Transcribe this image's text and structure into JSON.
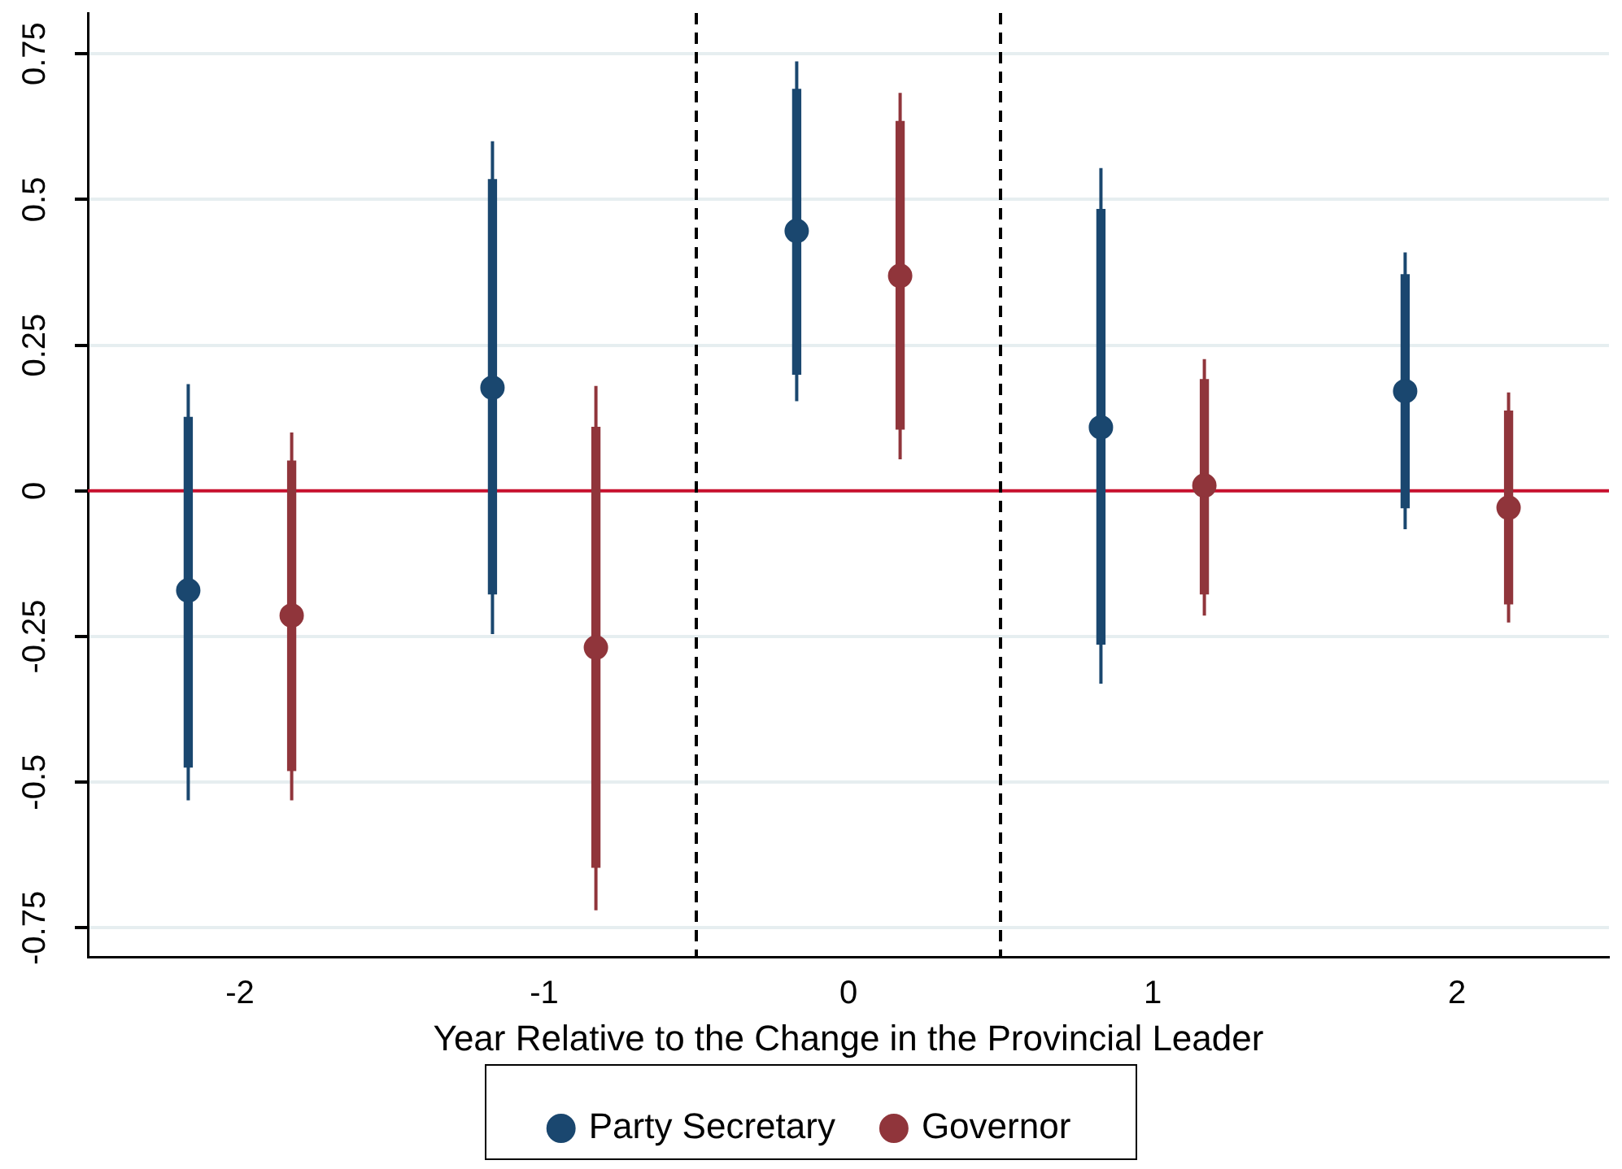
{
  "chart_data": {
    "type": "scatter",
    "xlabel": "Year Relative to the Change in the Provincial Leader",
    "xlim": [
      -2.5,
      2.5
    ],
    "xticks": [
      -2,
      -1,
      0,
      1,
      2
    ],
    "ylim": [
      -0.8,
      0.82
    ],
    "yticks": [
      -0.75,
      -0.5,
      -0.25,
      0,
      0.25,
      0.5,
      0.75
    ],
    "grid": "y",
    "legend": "bottom",
    "marker": "circle",
    "ref_lines": [
      {
        "axis": "y",
        "value": 0,
        "color": "#c8102e",
        "line_style": "solid"
      },
      {
        "axis": "x",
        "value": -0.5,
        "color": "#000000",
        "line_style": "dashed"
      },
      {
        "axis": "x",
        "value": 0.5,
        "color": "#000000",
        "line_style": "dashed"
      }
    ],
    "series": [
      {
        "type": "bar",
        "color": "#1a476f",
        "x": [
          -2.17,
          -1.17,
          -0.17,
          0.83,
          1.83
        ],
        "base": [
          -0.474,
          -0.177,
          0.2,
          -0.263,
          -0.029
        ],
        "values": [
          0.6,
          0.711,
          0.489,
          0.746,
          0.4
        ]
      },
      {
        "type": "bar",
        "color": "#90353b",
        "x": [
          -1.83,
          -0.83,
          0.17,
          1.17,
          2.17
        ],
        "base": [
          -0.48,
          -0.646,
          0.106,
          -0.177,
          -0.194
        ],
        "values": [
          0.531,
          0.755,
          0.528,
          0.368,
          0.331
        ]
      },
      {
        "name": "Party Secretary",
        "color": "#1a476f",
        "x": [
          -2.17,
          -1.17,
          -0.17,
          0.83,
          1.83
        ],
        "values": [
          -0.171,
          0.177,
          0.446,
          0.109,
          0.171
        ],
        "errors": [
          [
            -0.531,
            0.183
          ],
          [
            -0.246,
            0.6
          ],
          [
            0.154,
            0.737
          ],
          [
            -0.331,
            0.554
          ],
          [
            -0.066,
            0.409
          ]
        ]
      },
      {
        "name": "Governor",
        "color": "#90353b",
        "x": [
          -1.83,
          -0.83,
          0.17,
          1.17,
          2.17
        ],
        "values": [
          -0.214,
          -0.269,
          0.369,
          0.009,
          -0.029
        ],
        "errors": [
          [
            -0.531,
            0.1
          ],
          [
            -0.72,
            0.18
          ],
          [
            0.054,
            0.683
          ],
          [
            -0.214,
            0.226
          ],
          [
            -0.226,
            0.169
          ]
        ]
      }
    ]
  }
}
